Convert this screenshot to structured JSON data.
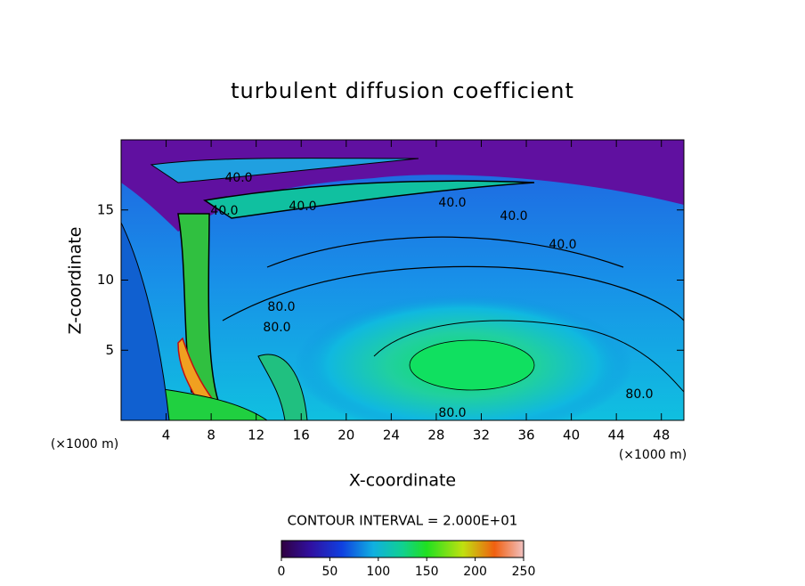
{
  "chart_data": {
    "type": "contour",
    "title": "turbulent diffusion coefficient",
    "x_label": "X-coordinate",
    "y_label": "Z-coordinate",
    "x_unit": "(×1000 m)",
    "y_unit": "(×1000 m)",
    "xlim": [
      0,
      50
    ],
    "xticks": [
      4,
      8,
      12,
      16,
      20,
      24,
      28,
      32,
      36,
      40,
      44,
      48
    ],
    "ylim": [
      0,
      20
    ],
    "yticks": [
      5,
      10,
      15
    ],
    "contour_labels": [
      "40.0",
      "40.0",
      "40.0",
      "40.0",
      "40.0",
      "40.0",
      "80.0",
      "80.0",
      "80.0",
      "80.0"
    ],
    "contour_interval": "CONTOUR INTERVAL = 2.000E+01",
    "colorbar_lim": [
      0,
      250
    ],
    "colorbar_ticks": [
      0,
      50,
      100,
      150,
      200,
      250
    ]
  }
}
